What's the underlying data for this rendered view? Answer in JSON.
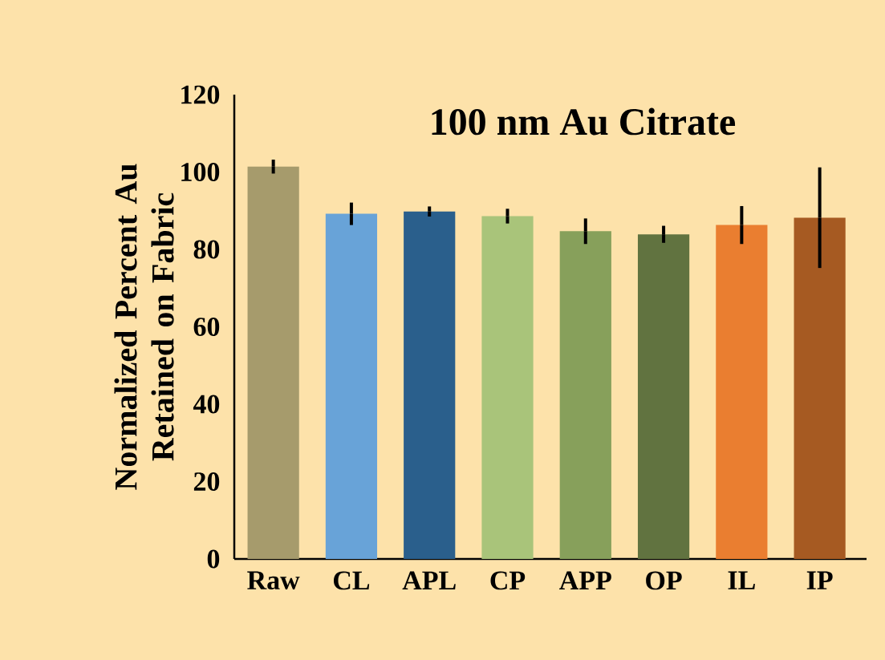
{
  "chart_data": {
    "type": "bar",
    "title": "100 nm Au Citrate",
    "ylabel": "Normalized Percent Au Retained on Fabric",
    "categories": [
      "Raw",
      "CL",
      "APL",
      "CP",
      "APP",
      "OP",
      "IL",
      "IP"
    ],
    "values": [
      101.4,
      89.2,
      89.8,
      88.6,
      84.7,
      83.9,
      86.3,
      88.2
    ],
    "errors": [
      1.8,
      2.9,
      1.3,
      1.9,
      3.3,
      2.2,
      4.9,
      13
    ],
    "colors": [
      "#a69b6c",
      "#68a3d8",
      "#2a5f8c",
      "#a9c47a",
      "#87a05b",
      "#617340",
      "#ea7e30",
      "#a65a22"
    ],
    "ylim": [
      0,
      120
    ],
    "yticks": [
      0,
      20,
      40,
      60,
      80,
      100,
      120
    ]
  }
}
